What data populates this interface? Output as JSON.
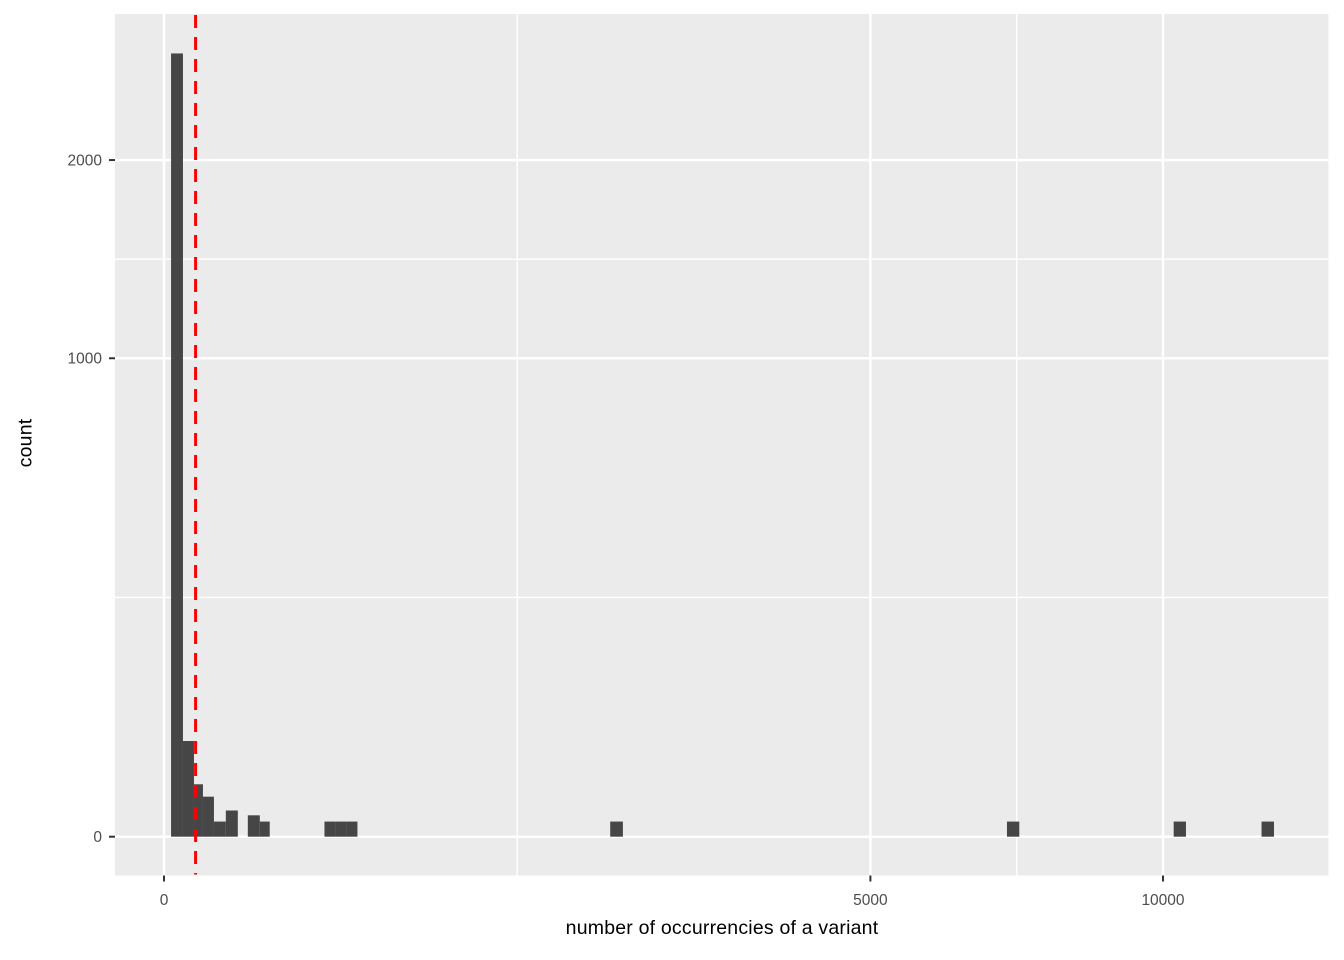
{
  "figure": {
    "background": "#FFFFFF"
  },
  "chart_data": {
    "type": "bar",
    "subtype": "histogram",
    "title": "",
    "xlabel": "number of occurrencies of a variant",
    "ylabel": "count",
    "x_scale": "sqrt",
    "y_scale": "sqrt",
    "x_range": [
      0,
      13500
    ],
    "y_range": [
      0,
      2750
    ],
    "grid": "on",
    "legend": "none",
    "x_ticks": [
      {
        "value": 0,
        "label": "0"
      },
      {
        "value": 5000,
        "label": "5000"
      },
      {
        "value": 10000,
        "label": "10000"
      }
    ],
    "y_ticks": [
      {
        "value": 0,
        "label": "0"
      },
      {
        "value": 1000,
        "label": "1000"
      },
      {
        "value": 2000,
        "label": "2000"
      }
    ],
    "bins": [
      {
        "x0": 0.5,
        "x1": 3.6,
        "count": 2680
      },
      {
        "x0": 3.6,
        "x1": 9,
        "count": 40
      },
      {
        "x0": 9,
        "x1": 15.2,
        "count": 12
      },
      {
        "x0": 15.2,
        "x1": 25,
        "count": 7
      },
      {
        "x0": 25,
        "x1": 38.3,
        "count": 1
      },
      {
        "x0": 38.3,
        "x1": 54.6,
        "count": 3
      },
      {
        "x0": 70.4,
        "x1": 92,
        "count": 2
      },
      {
        "x0": 92,
        "x1": 112,
        "count": 1
      },
      {
        "x0": 258,
        "x1": 295,
        "count": 1
      },
      {
        "x0": 295,
        "x1": 334,
        "count": 1
      },
      {
        "x0": 334,
        "x1": 375,
        "count": 1
      },
      {
        "x0": 1995,
        "x1": 2110,
        "count": 1
      },
      {
        "x0": 7120,
        "x1": 7330,
        "count": 1
      },
      {
        "x0": 10215,
        "x1": 10465,
        "count": 1
      },
      {
        "x0": 12070,
        "x1": 12345,
        "count": 1
      }
    ],
    "vline": {
      "x": 10,
      "color": "#FF0000",
      "style": "dashed"
    },
    "colors": {
      "bar": "#464646",
      "panel": "#EBEBEB",
      "grid": "#FFFFFF",
      "tick_text": "#4D4D4D",
      "tick_mark": "#333333",
      "axis_title": "#000000"
    }
  }
}
